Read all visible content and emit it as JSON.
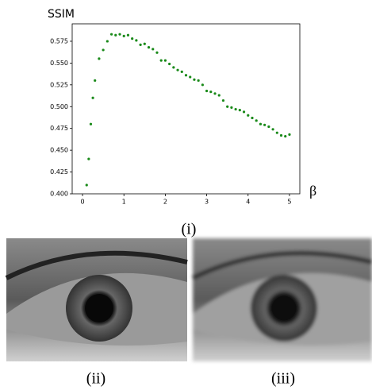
{
  "chart_data": {
    "type": "scatter",
    "y_label": "SSIM",
    "x_label": "β",
    "x": [
      0.1,
      0.15,
      0.2,
      0.25,
      0.3,
      0.4,
      0.5,
      0.6,
      0.7,
      0.8,
      0.9,
      1.0,
      1.1,
      1.2,
      1.3,
      1.4,
      1.5,
      1.6,
      1.7,
      1.8,
      1.9,
      2.0,
      2.1,
      2.2,
      2.3,
      2.4,
      2.5,
      2.6,
      2.7,
      2.8,
      2.9,
      3.0,
      3.1,
      3.2,
      3.3,
      3.4,
      3.5,
      3.6,
      3.7,
      3.8,
      3.9,
      4.0,
      4.1,
      4.2,
      4.3,
      4.4,
      4.5,
      4.6,
      4.7,
      4.8,
      4.9,
      5.0
    ],
    "values": [
      0.41,
      0.44,
      0.48,
      0.51,
      0.53,
      0.555,
      0.565,
      0.575,
      0.583,
      0.582,
      0.583,
      0.581,
      0.582,
      0.578,
      0.576,
      0.571,
      0.572,
      0.568,
      0.566,
      0.562,
      0.553,
      0.553,
      0.549,
      0.545,
      0.542,
      0.54,
      0.536,
      0.534,
      0.531,
      0.53,
      0.525,
      0.518,
      0.517,
      0.515,
      0.513,
      0.507,
      0.5,
      0.499,
      0.497,
      0.496,
      0.494,
      0.49,
      0.487,
      0.484,
      0.48,
      0.479,
      0.477,
      0.474,
      0.47,
      0.467,
      0.466,
      0.468
    ],
    "color": "#1a8a1a",
    "xlim": [
      -0.25,
      5.25
    ],
    "ylim": [
      0.4,
      0.595
    ],
    "xticks": [
      0,
      1,
      2,
      3,
      4,
      5
    ],
    "yticks": [
      {
        "value": 0.4,
        "label": "0.400"
      },
      {
        "value": 0.425,
        "label": "0.425"
      },
      {
        "value": 0.45,
        "label": "0.450"
      },
      {
        "value": 0.475,
        "label": "0.475"
      },
      {
        "value": 0.5,
        "label": "0.500"
      },
      {
        "value": 0.525,
        "label": "0.525"
      },
      {
        "value": 0.55,
        "label": "0.550"
      },
      {
        "value": 0.575,
        "label": "0.575"
      }
    ]
  },
  "captions": [
    "(i)",
    "(ii)",
    "(iii)"
  ]
}
